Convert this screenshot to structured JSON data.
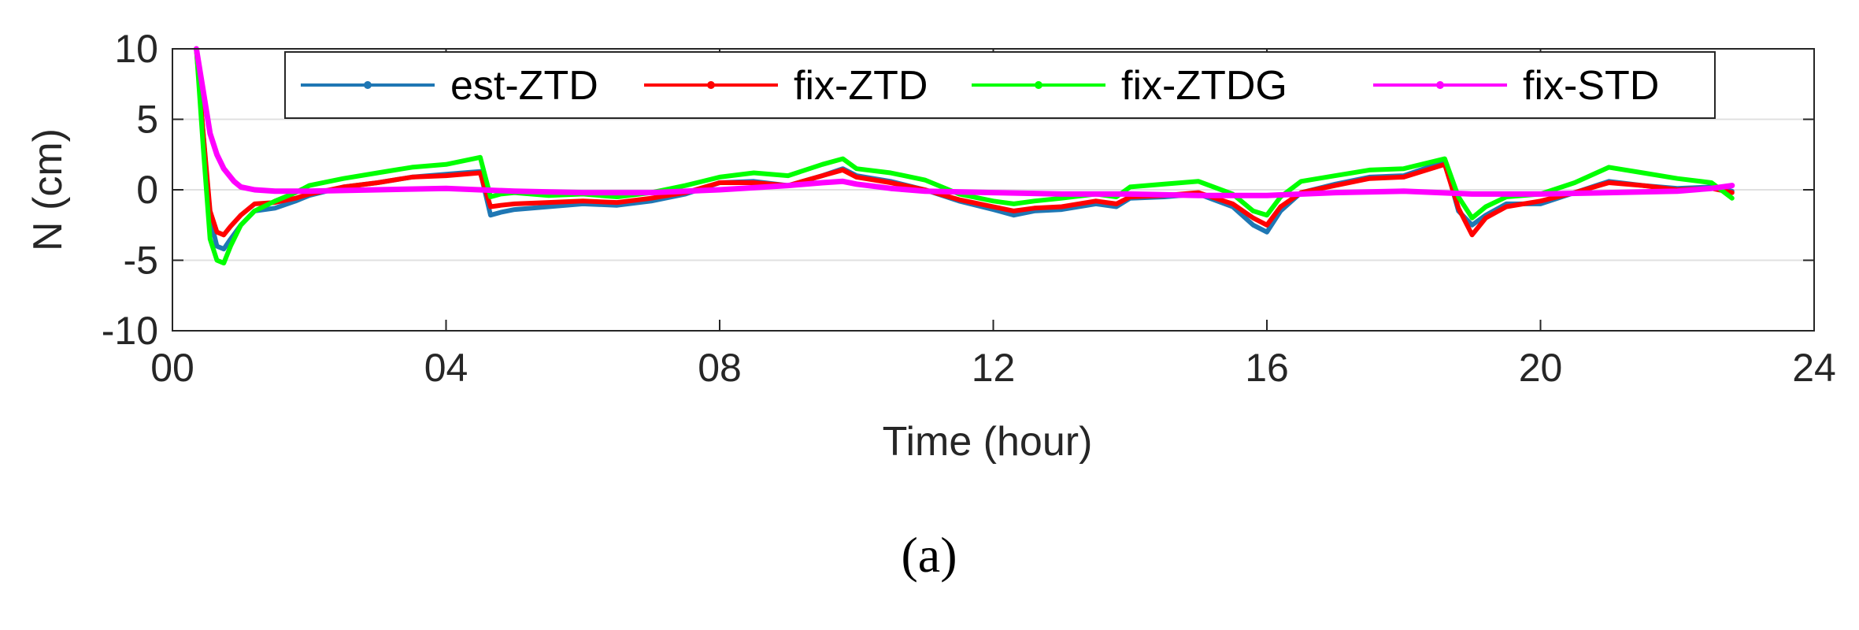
{
  "chart_data": {
    "type": "line",
    "title": "",
    "panel_label": "(a)",
    "xlabel": "Time  (hour)",
    "ylabel": "N (cm)",
    "xlim": [
      0,
      24
    ],
    "ylim": [
      -10,
      10
    ],
    "x_ticks": [
      0,
      4,
      8,
      12,
      16,
      20,
      24
    ],
    "x_tick_labels": [
      "00",
      "04",
      "08",
      "12",
      "16",
      "20",
      "24"
    ],
    "y_ticks": [
      -10,
      -5,
      0,
      5,
      10
    ],
    "y_tick_labels": [
      "-10",
      "-5",
      "0",
      "5",
      "10"
    ],
    "grid": true,
    "legend_position": "top",
    "series": [
      {
        "name": "est-ZTD",
        "color": "#1f77b4",
        "x": [
          0.35,
          0.45,
          0.55,
          0.65,
          0.75,
          0.85,
          1.0,
          1.2,
          1.5,
          1.8,
          2.0,
          2.5,
          3.0,
          3.5,
          4.0,
          4.5,
          4.65,
          4.8,
          5.0,
          5.5,
          6.0,
          6.5,
          7.0,
          7.5,
          8.0,
          8.5,
          9.0,
          9.5,
          9.8,
          10.0,
          10.5,
          11.0,
          11.5,
          12.0,
          12.3,
          12.6,
          13.0,
          13.5,
          13.8,
          14.0,
          14.5,
          15.0,
          15.5,
          15.8,
          16.0,
          16.2,
          16.5,
          17.0,
          17.5,
          18.0,
          18.6,
          18.8,
          19.0,
          19.2,
          19.5,
          20.0,
          20.5,
          21.0,
          21.5,
          22.0,
          22.5,
          22.8
        ],
        "y": [
          10,
          4,
          -2,
          -4,
          -4.2,
          -3.5,
          -2.5,
          -1.5,
          -1.3,
          -0.8,
          -0.4,
          0.2,
          0.5,
          0.9,
          1.1,
          1.3,
          -1.8,
          -1.6,
          -1.4,
          -1.2,
          -1.0,
          -1.1,
          -0.8,
          -0.3,
          0.5,
          0.6,
          0.3,
          1.0,
          1.5,
          1.0,
          0.6,
          0.0,
          -0.8,
          -1.4,
          -1.8,
          -1.5,
          -1.4,
          -1.0,
          -1.2,
          -0.6,
          -0.5,
          -0.3,
          -1.2,
          -2.5,
          -3.0,
          -1.5,
          -0.2,
          0.4,
          0.9,
          1.0,
          2.0,
          -1.5,
          -2.5,
          -1.8,
          -1.0,
          -1.0,
          -0.2,
          0.6,
          0.3,
          0.1,
          0.2,
          -0.1
        ]
      },
      {
        "name": "fix-ZTD",
        "color": "#ff0000",
        "x": [
          0.35,
          0.45,
          0.55,
          0.65,
          0.75,
          0.85,
          1.0,
          1.2,
          1.5,
          1.8,
          2.0,
          2.5,
          3.0,
          3.5,
          4.0,
          4.5,
          4.65,
          4.8,
          5.0,
          5.5,
          6.0,
          6.5,
          7.0,
          7.5,
          8.0,
          8.5,
          9.0,
          9.5,
          9.8,
          10.0,
          10.5,
          11.0,
          11.5,
          12.0,
          12.3,
          12.6,
          13.0,
          13.5,
          13.8,
          14.0,
          14.5,
          15.0,
          15.5,
          15.8,
          16.0,
          16.2,
          16.5,
          17.0,
          17.5,
          18.0,
          18.6,
          18.8,
          19.0,
          19.2,
          19.5,
          20.0,
          20.5,
          21.0,
          21.5,
          22.0,
          22.5,
          22.8
        ],
        "y": [
          10,
          4,
          -1.5,
          -3.0,
          -3.2,
          -2.6,
          -1.8,
          -1.0,
          -0.9,
          -0.6,
          -0.3,
          0.2,
          0.5,
          0.9,
          1.0,
          1.2,
          -1.2,
          -1.1,
          -1.0,
          -0.9,
          -0.8,
          -0.9,
          -0.6,
          -0.2,
          0.5,
          0.5,
          0.3,
          1.0,
          1.4,
          0.9,
          0.5,
          0.0,
          -0.7,
          -1.2,
          -1.5,
          -1.3,
          -1.2,
          -0.8,
          -1.0,
          -0.5,
          -0.4,
          -0.2,
          -1.0,
          -2.0,
          -2.5,
          -1.2,
          -0.2,
          0.3,
          0.8,
          0.9,
          1.8,
          -1.3,
          -3.2,
          -2.0,
          -1.2,
          -0.8,
          -0.2,
          0.5,
          0.3,
          0.0,
          0.1,
          -0.2
        ]
      },
      {
        "name": "fix-ZTDG",
        "color": "#00ff00",
        "x": [
          0.35,
          0.45,
          0.55,
          0.65,
          0.75,
          0.85,
          1.0,
          1.2,
          1.5,
          1.8,
          2.0,
          2.5,
          3.0,
          3.5,
          4.0,
          4.5,
          4.65,
          4.8,
          5.0,
          5.5,
          6.0,
          6.5,
          7.0,
          7.5,
          8.0,
          8.5,
          9.0,
          9.5,
          9.8,
          10.0,
          10.5,
          11.0,
          11.5,
          12.0,
          12.3,
          12.6,
          13.0,
          13.5,
          13.8,
          14.0,
          14.5,
          15.0,
          15.5,
          15.8,
          16.0,
          16.2,
          16.5,
          17.0,
          17.5,
          18.0,
          18.6,
          18.8,
          19.0,
          19.2,
          19.5,
          20.0,
          20.5,
          21.0,
          21.5,
          22.0,
          22.5,
          22.8
        ],
        "y": [
          10,
          3,
          -3.5,
          -5.0,
          -5.2,
          -4.0,
          -2.5,
          -1.5,
          -0.8,
          -0.2,
          0.3,
          0.8,
          1.2,
          1.6,
          1.8,
          2.3,
          -0.5,
          -0.3,
          -0.2,
          -0.4,
          -0.3,
          -0.5,
          -0.2,
          0.3,
          0.9,
          1.2,
          1.0,
          1.8,
          2.2,
          1.5,
          1.2,
          0.7,
          -0.3,
          -0.8,
          -1.0,
          -0.8,
          -0.6,
          -0.3,
          -0.5,
          0.2,
          0.4,
          0.6,
          -0.3,
          -1.5,
          -1.8,
          -0.5,
          0.6,
          1.0,
          1.4,
          1.5,
          2.2,
          -0.5,
          -2.0,
          -1.2,
          -0.5,
          -0.3,
          0.5,
          1.6,
          1.2,
          0.8,
          0.5,
          -0.6
        ]
      },
      {
        "name": "fix-STD",
        "color": "#ff00ff",
        "x": [
          0.35,
          0.45,
          0.55,
          0.65,
          0.75,
          0.9,
          1.0,
          1.2,
          1.5,
          2.0,
          3.0,
          4.0,
          5.0,
          6.0,
          7.0,
          8.0,
          9.0,
          9.5,
          9.8,
          10.0,
          10.5,
          11.0,
          12.0,
          13.0,
          14.0,
          15.0,
          16.0,
          17.0,
          18.0,
          19.0,
          20.0,
          21.0,
          22.0,
          22.5,
          22.8
        ],
        "y": [
          10,
          7,
          4,
          2.5,
          1.5,
          0.6,
          0.2,
          0.0,
          -0.1,
          -0.1,
          0.0,
          0.1,
          -0.1,
          -0.2,
          -0.2,
          0.0,
          0.3,
          0.5,
          0.6,
          0.4,
          0.1,
          -0.1,
          -0.2,
          -0.3,
          -0.3,
          -0.4,
          -0.4,
          -0.2,
          -0.1,
          -0.3,
          -0.3,
          -0.2,
          -0.1,
          0.1,
          0.3
        ]
      }
    ]
  }
}
